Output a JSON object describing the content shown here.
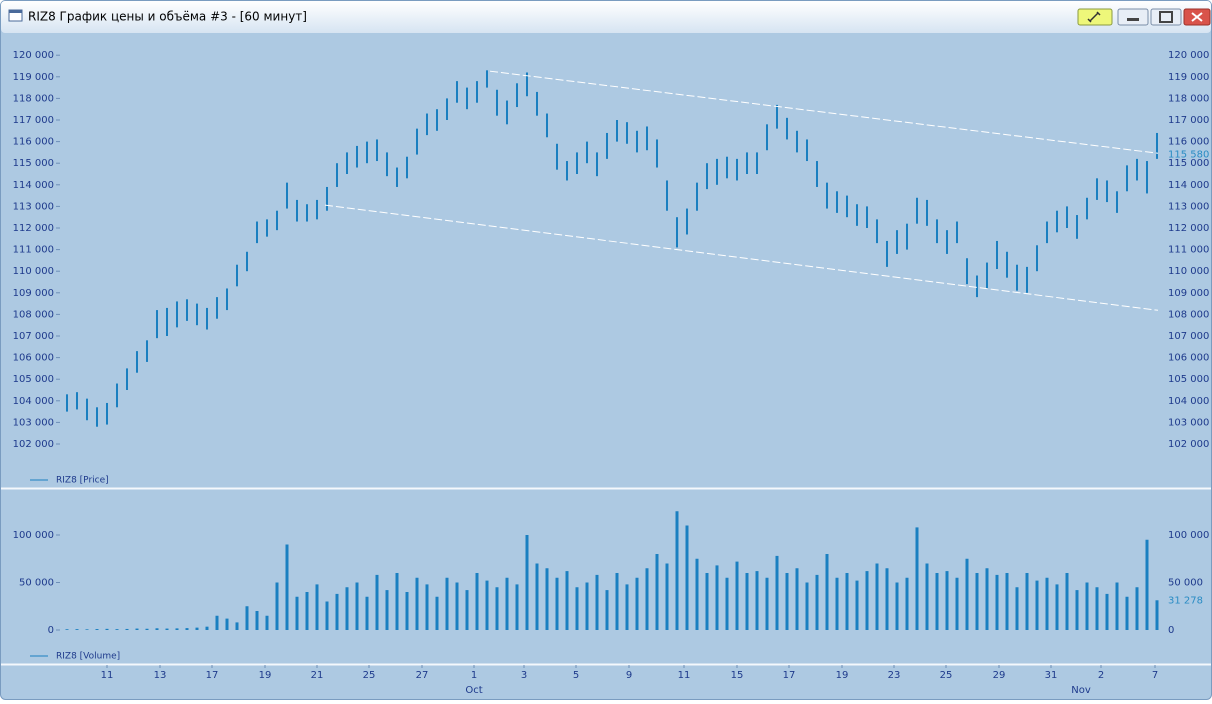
{
  "window": {
    "title": "RIZ8 График цены и объёма #3 - [60 минут]"
  },
  "chart_data": [
    {
      "type": "hilo",
      "xlim": [
        0,
        110
      ],
      "ylim": [
        100000,
        121000
      ],
      "yticks": [
        {
          "value": 102000,
          "label": "102 000"
        },
        {
          "value": 103000,
          "label": "103 000"
        },
        {
          "value": 104000,
          "label": "104 000"
        },
        {
          "value": 105000,
          "label": "105 000"
        },
        {
          "value": 106000,
          "label": "106 000"
        },
        {
          "value": 107000,
          "label": "107 000"
        },
        {
          "value": 108000,
          "label": "108 000"
        },
        {
          "value": 109000,
          "label": "109 000"
        },
        {
          "value": 110000,
          "label": "110 000"
        },
        {
          "value": 111000,
          "label": "111 000"
        },
        {
          "value": 112000,
          "label": "112 000"
        },
        {
          "value": 113000,
          "label": "113 000"
        },
        {
          "value": 114000,
          "label": "114 000"
        },
        {
          "value": 115000,
          "label": "115 000"
        },
        {
          "value": 116000,
          "label": "116 000"
        },
        {
          "value": 117000,
          "label": "117 000"
        },
        {
          "value": 118000,
          "label": "118 000"
        },
        {
          "value": 119000,
          "label": "119 000"
        },
        {
          "value": 120000,
          "label": "120 000"
        }
      ],
      "series": [
        {
          "name": "RIZ8 [Price]",
          "color": "#1a7fc0",
          "high": [
            104300,
            104400,
            104100,
            103700,
            103900,
            104800,
            105500,
            106300,
            106800,
            108200,
            108300,
            108600,
            108700,
            108500,
            108300,
            108800,
            109200,
            110300,
            110900,
            112300,
            112400,
            112800,
            114100,
            113300,
            113100,
            113300,
            113900,
            115000,
            115500,
            115800,
            116000,
            116100,
            115500,
            114800,
            115300,
            116600,
            117300,
            117500,
            118000,
            118800,
            118500,
            118800,
            119300,
            118400,
            117900,
            118700,
            119200,
            118300,
            117300,
            115900,
            115100,
            115500,
            116000,
            115500,
            116400,
            117000,
            116900,
            116500,
            116700,
            116100,
            114200,
            112500,
            112900,
            114100,
            115000,
            115200,
            115300,
            115200,
            115500,
            115500,
            116800,
            117700,
            117100,
            116500,
            116100,
            115100,
            114100,
            113700,
            113500,
            113100,
            113000,
            112400,
            111400,
            111900,
            112200,
            113400,
            113300,
            112400,
            111900,
            112300,
            110600,
            109800,
            110400,
            111400,
            110900,
            110300,
            110200,
            111200,
            112300,
            112800,
            113000,
            112600,
            113400,
            114300,
            114200,
            113700,
            114900,
            115200,
            115100,
            116400
          ],
          "low": [
            103500,
            103600,
            103100,
            102800,
            102900,
            103700,
            104500,
            105300,
            105800,
            106900,
            107000,
            107400,
            107700,
            107500,
            107300,
            107800,
            108200,
            109300,
            110000,
            111300,
            111600,
            111900,
            112900,
            112300,
            112300,
            112400,
            112800,
            113900,
            114500,
            114800,
            115000,
            115100,
            114400,
            113900,
            114300,
            115400,
            116300,
            116500,
            117000,
            117800,
            117500,
            117800,
            118500,
            117200,
            116800,
            117600,
            118100,
            117200,
            116200,
            114700,
            114200,
            114500,
            115000,
            114400,
            115200,
            116000,
            115900,
            115500,
            115600,
            114800,
            112800,
            111100,
            111700,
            112800,
            113800,
            114000,
            114300,
            114200,
            114500,
            114500,
            115600,
            116600,
            116100,
            115500,
            115100,
            113900,
            112900,
            112700,
            112500,
            112100,
            112000,
            111300,
            110200,
            110800,
            111000,
            112200,
            112100,
            111300,
            110800,
            111300,
            109400,
            108800,
            109200,
            110100,
            109700,
            109100,
            109000,
            110000,
            111300,
            111800,
            112000,
            111500,
            112400,
            113300,
            113200,
            112700,
            113700,
            114200,
            113600,
            115200
          ]
        }
      ],
      "last_label": {
        "value": 115580,
        "label": "115 580"
      },
      "trendlines": [
        {
          "x": [
            42.8,
            109.6
          ],
          "y": [
            119260,
            115460
          ]
        },
        {
          "x": [
            26.3,
            109.6
          ],
          "y": [
            113060,
            108190
          ]
        }
      ]
    },
    {
      "type": "bar",
      "xlim": [
        0,
        110
      ],
      "ylim": [
        0,
        145000
      ],
      "yticks": [
        0,
        {
          "value": 50000,
          "label": "50 000"
        },
        {
          "value": 100000,
          "label": "100 000"
        }
      ],
      "series": [
        {
          "name": "RIZ8 [Volume]",
          "color": "#1a7fc0",
          "values": [
            800,
            900,
            700,
            1000,
            1200,
            900,
            1100,
            1500,
            1300,
            1800,
            1500,
            1700,
            2000,
            2500,
            3500,
            15000,
            12000,
            8000,
            25000,
            20000,
            15000,
            50000,
            90000,
            35000,
            40000,
            48000,
            30000,
            38000,
            45000,
            50000,
            35000,
            58000,
            42000,
            60000,
            40000,
            55000,
            48000,
            35000,
            55000,
            50000,
            42000,
            60000,
            52000,
            45000,
            55000,
            48000,
            100000,
            70000,
            65000,
            55000,
            62000,
            45000,
            50000,
            58000,
            42000,
            60000,
            48000,
            55000,
            65000,
            80000,
            70000,
            125000,
            110000,
            75000,
            60000,
            68000,
            55000,
            72000,
            60000,
            62000,
            55000,
            78000,
            60000,
            65000,
            50000,
            58000,
            80000,
            55000,
            60000,
            52000,
            62000,
            70000,
            65000,
            50000,
            55000,
            108000,
            70000,
            60000,
            62000,
            55000,
            75000,
            60000,
            65000,
            58000,
            60000,
            45000,
            60000,
            52000,
            55000,
            48000,
            60000,
            42000,
            50000,
            45000,
            38000,
            50000,
            35000,
            45000,
            95000,
            31278
          ]
        }
      ],
      "last_label": {
        "value": 31278,
        "label": "31 278"
      },
      "xticks": [
        {
          "value": 4.5,
          "label": "11"
        },
        {
          "value": 9.8,
          "label": "13"
        },
        {
          "value": 15,
          "label": "17"
        },
        {
          "value": 20.3,
          "label": "19"
        },
        {
          "value": 25.5,
          "label": "21"
        },
        {
          "value": 30.7,
          "label": "25"
        },
        {
          "value": 36,
          "label": "27"
        },
        {
          "value": 41.2,
          "label": "1"
        },
        {
          "value": 46.2,
          "label": "3"
        },
        {
          "value": 51.4,
          "label": "5"
        },
        {
          "value": 56.7,
          "label": "9"
        },
        {
          "value": 62.2,
          "label": "11"
        },
        {
          "value": 67.5,
          "label": "15"
        },
        {
          "value": 72.7,
          "label": "17"
        },
        {
          "value": 78,
          "label": "19"
        },
        {
          "value": 83.2,
          "label": "23"
        },
        {
          "value": 88.4,
          "label": "25"
        },
        {
          "value": 93.7,
          "label": "29"
        },
        {
          "value": 98.9,
          "label": "31"
        },
        {
          "value": 103.9,
          "label": "2"
        },
        {
          "value": 109.3,
          "label": "7"
        }
      ],
      "month_labels": [
        {
          "value": 41.2,
          "label": "Oct"
        },
        {
          "value": 101.9,
          "label": "Nov"
        }
      ]
    }
  ]
}
